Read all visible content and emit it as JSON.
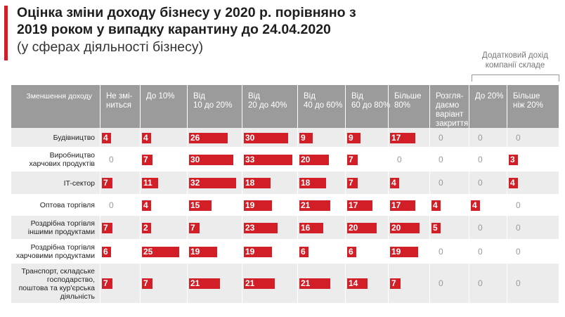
{
  "title": "Оцінка зміни доходу бізнесу у 2020 р. порівняно з 2019 роком у випадку карантину до 24.04.2020",
  "subtitle": "(у сферах діяльності бізнесу)",
  "note": "Додатковий дохід компанії складе",
  "colors": {
    "accent": "#d21f27",
    "header_bg": "#9b9b9b",
    "row_even": "#ececec",
    "row_odd": "#ffffff",
    "zero_text": "#9a9a9a"
  },
  "chart_data": {
    "type": "table",
    "corner_label": "Зменшення доходу",
    "columns": [
      "Не змі-ниться",
      "До 10%",
      "Від 10 до 20%",
      "Від 20 до 40%",
      "Від 40 до 60%",
      "Від 60 до 80%",
      "Більше 80%",
      "Розгля-даємо варіант закриття",
      "До 20%",
      "Більше ніж 20%"
    ],
    "column_lines": [
      [
        "Не змі-",
        "ниться"
      ],
      [
        "До 10%"
      ],
      [
        "Від",
        "10 до 20%"
      ],
      [
        "Від",
        "20 до 40%"
      ],
      [
        "Від",
        "40 до 60%"
      ],
      [
        "Від",
        "60 до 80%"
      ],
      [
        "Більше",
        "80%"
      ],
      [
        "Розгля-",
        "даємо",
        "варіант",
        "закриття"
      ],
      [
        "До 20%"
      ],
      [
        "Більше",
        "ніж 20%"
      ]
    ],
    "rows": [
      {
        "label": "Будівництво",
        "label_lines": [
          "Будівництво"
        ],
        "values": [
          4,
          4,
          26,
          30,
          9,
          9,
          17,
          0,
          0,
          0
        ]
      },
      {
        "label": "Виробництво харчових продуктів",
        "label_lines": [
          "Виробництво",
          "харчових продуктів"
        ],
        "values": [
          0,
          7,
          30,
          33,
          20,
          7,
          0,
          0,
          0,
          3
        ]
      },
      {
        "label": "IT-сектор",
        "label_lines": [
          "IT-сектор"
        ],
        "values": [
          7,
          11,
          32,
          18,
          18,
          7,
          4,
          0,
          0,
          4
        ]
      },
      {
        "label": "Оптова торгівля",
        "label_lines": [
          "Оптова торгівля"
        ],
        "values": [
          0,
          4,
          15,
          19,
          21,
          17,
          17,
          4,
          4,
          0
        ]
      },
      {
        "label": "Роздрібна торгівля іншими продуктами",
        "label_lines": [
          "Роздрібна торгівля",
          "іншими продуктами"
        ],
        "values": [
          7,
          2,
          7,
          23,
          16,
          20,
          20,
          5,
          0,
          0
        ]
      },
      {
        "label": "Роздрібна торгівля харчовими продуктами",
        "label_lines": [
          "Роздрібна торгівля",
          "харчовими продуктами"
        ],
        "values": [
          6,
          25,
          19,
          19,
          6,
          6,
          19,
          0,
          0,
          0
        ]
      },
      {
        "label": "Транспорт, складське господарство, поштова та кур'єрська діяльність",
        "label_lines": [
          "Транспорт, складське",
          "господарство,",
          "поштова та кур'єрська",
          "діяльність"
        ],
        "values": [
          7,
          7,
          21,
          21,
          21,
          14,
          7,
          0,
          0,
          0
        ]
      }
    ]
  }
}
